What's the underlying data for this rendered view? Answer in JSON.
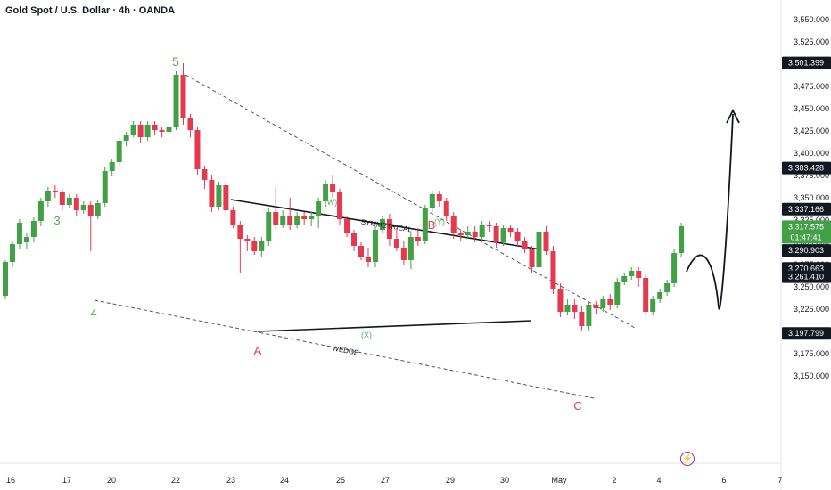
{
  "header": {
    "title": "Gold Spot / U.S. Dollar · 4h · OANDA"
  },
  "colors": {
    "up": "#43a047",
    "down": "#e53950",
    "wave_green": "#4caf50",
    "wave_red": "#e53950",
    "tag_dark": "#131722",
    "tag_green": "#43a047"
  },
  "icons": {
    "flash": "lightning-icon"
  },
  "chart_data": {
    "type": "candlestick",
    "symbol": "Gold Spot / U.S. Dollar",
    "interval": "4h",
    "source": "OANDA",
    "x_ticks": [
      "16",
      "17",
      "20",
      "22",
      "23",
      "24",
      "25",
      "27",
      "29",
      "30",
      "May",
      "2",
      "4",
      "6",
      "7"
    ],
    "y_ticks": [
      "3,550.000",
      "3,525.000",
      "3,500.000",
      "3,475.000",
      "3,450.000",
      "3,425.000",
      "3,400.000",
      "3,375.000",
      "3,350.000",
      "3,325.000",
      "3,300.000",
      "3,275.000",
      "3,250.000",
      "3,225.000",
      "3,200.000",
      "3,175.000",
      "3,150.000"
    ],
    "ylim": [
      3140,
      3560
    ],
    "price_tags": [
      {
        "label": "3,501.399",
        "value": 3501.4,
        "style": "dark"
      },
      {
        "label": "3,383.428",
        "value": 3383.4,
        "style": "dark"
      },
      {
        "label": "3,337.166",
        "value": 3337.2,
        "style": "dark"
      },
      {
        "label": "3,317.575",
        "sub": "01:47:41",
        "value": 3317.6,
        "style": "green"
      },
      {
        "label": "3,290.903",
        "value": 3290.9,
        "style": "dark"
      },
      {
        "label": "3,270.663",
        "value": 3270.7,
        "style": "dark"
      },
      {
        "label": "3,261.410",
        "value": 3261.4,
        "style": "dark"
      },
      {
        "label": "3,197.799",
        "value": 3197.8,
        "style": "dark"
      }
    ],
    "candles": [
      [
        3240,
        3278,
        3236,
        3280
      ],
      [
        3278,
        3298,
        3272,
        3302
      ],
      [
        3298,
        3322,
        3292,
        3326
      ],
      [
        3300,
        3306,
        3292,
        3310
      ],
      [
        3306,
        3324,
        3300,
        3328
      ],
      [
        3324,
        3346,
        3318,
        3350
      ],
      [
        3346,
        3358,
        3340,
        3362
      ],
      [
        3358,
        3356,
        3350,
        3364
      ],
      [
        3356,
        3342,
        3336,
        3360
      ],
      [
        3342,
        3350,
        3338,
        3354
      ],
      [
        3350,
        3336,
        3330,
        3354
      ],
      [
        3336,
        3342,
        3332,
        3346
      ],
      [
        3342,
        3330,
        3290,
        3346
      ],
      [
        3330,
        3344,
        3326,
        3348
      ],
      [
        3344,
        3380,
        3340,
        3384
      ],
      [
        3380,
        3390,
        3374,
        3394
      ],
      [
        3390,
        3414,
        3384,
        3418
      ],
      [
        3414,
        3420,
        3408,
        3424
      ],
      [
        3420,
        3432,
        3418,
        3436
      ],
      [
        3432,
        3418,
        3412,
        3436
      ],
      [
        3418,
        3432,
        3414,
        3436
      ],
      [
        3432,
        3426,
        3420,
        3436
      ],
      [
        3426,
        3424,
        3418,
        3430
      ],
      [
        3424,
        3430,
        3418,
        3434
      ],
      [
        3430,
        3488,
        3426,
        3492
      ],
      [
        3488,
        3440,
        3432,
        3501
      ],
      [
        3440,
        3426,
        3418,
        3444
      ],
      [
        3426,
        3382,
        3376,
        3430
      ],
      [
        3382,
        3370,
        3360,
        3386
      ],
      [
        3370,
        3340,
        3334,
        3376
      ],
      [
        3340,
        3364,
        3336,
        3368
      ],
      [
        3364,
        3336,
        3330,
        3370
      ],
      [
        3336,
        3320,
        3316,
        3340
      ],
      [
        3320,
        3304,
        3266,
        3324
      ],
      [
        3304,
        3302,
        3290,
        3308
      ],
      [
        3302,
        3290,
        3286,
        3306
      ],
      [
        3290,
        3302,
        3284,
        3306
      ],
      [
        3302,
        3334,
        3296,
        3338
      ],
      [
        3334,
        3320,
        3314,
        3362
      ],
      [
        3320,
        3330,
        3316,
        3336
      ],
      [
        3330,
        3320,
        3314,
        3350
      ],
      [
        3320,
        3330,
        3316,
        3334
      ],
      [
        3330,
        3326,
        3320,
        3334
      ],
      [
        3326,
        3330,
        3318,
        3334
      ],
      [
        3330,
        3346,
        3316,
        3350
      ],
      [
        3346,
        3366,
        3340,
        3370
      ],
      [
        3366,
        3356,
        3350,
        3376
      ],
      [
        3356,
        3326,
        3320,
        3360
      ],
      [
        3326,
        3310,
        3306,
        3330
      ],
      [
        3310,
        3296,
        3290,
        3314
      ],
      [
        3296,
        3284,
        3280,
        3300
      ],
      [
        3284,
        3278,
        3272,
        3294
      ],
      [
        3278,
        3314,
        3272,
        3318
      ],
      [
        3314,
        3326,
        3310,
        3330
      ],
      [
        3326,
        3304,
        3296,
        3332
      ],
      [
        3304,
        3294,
        3290,
        3316
      ],
      [
        3294,
        3280,
        3274,
        3302
      ],
      [
        3280,
        3306,
        3270,
        3310
      ],
      [
        3306,
        3302,
        3296,
        3316
      ],
      [
        3302,
        3338,
        3298,
        3342
      ],
      [
        3338,
        3354,
        3334,
        3358
      ],
      [
        3354,
        3346,
        3340,
        3358
      ],
      [
        3346,
        3330,
        3324,
        3350
      ],
      [
        3330,
        3310,
        3304,
        3334
      ],
      [
        3310,
        3308,
        3302,
        3314
      ],
      [
        3308,
        3312,
        3304,
        3318
      ],
      [
        3312,
        3306,
        3300,
        3318
      ],
      [
        3306,
        3320,
        3302,
        3324
      ],
      [
        3320,
        3318,
        3312,
        3324
      ],
      [
        3318,
        3300,
        3294,
        3322
      ],
      [
        3300,
        3316,
        3296,
        3320
      ],
      [
        3316,
        3312,
        3306,
        3320
      ],
      [
        3312,
        3302,
        3296,
        3316
      ],
      [
        3302,
        3292,
        3288,
        3306
      ],
      [
        3292,
        3272,
        3266,
        3296
      ],
      [
        3272,
        3312,
        3268,
        3316
      ],
      [
        3312,
        3290,
        3286,
        3318
      ],
      [
        3290,
        3248,
        3242,
        3296
      ],
      [
        3248,
        3222,
        3216,
        3254
      ],
      [
        3222,
        3230,
        3218,
        3236
      ],
      [
        3230,
        3222,
        3214,
        3236
      ],
      [
        3222,
        3206,
        3200,
        3228
      ],
      [
        3206,
        3230,
        3200,
        3234
      ],
      [
        3230,
        3226,
        3220,
        3234
      ],
      [
        3226,
        3236,
        3222,
        3240
      ],
      [
        3236,
        3230,
        3224,
        3242
      ],
      [
        3230,
        3256,
        3226,
        3260
      ],
      [
        3256,
        3262,
        3252,
        3266
      ],
      [
        3262,
        3268,
        3258,
        3272
      ],
      [
        3268,
        3260,
        3250,
        3272
      ],
      [
        3260,
        3222,
        3218,
        3264
      ],
      [
        3222,
        3236,
        3218,
        3240
      ],
      [
        3236,
        3244,
        3232,
        3248
      ],
      [
        3244,
        3254,
        3240,
        3258
      ],
      [
        3254,
        3288,
        3250,
        3292
      ],
      [
        3288,
        3318,
        3284,
        3322
      ]
    ],
    "wave_labels": [
      {
        "text": "5",
        "color": "green"
      },
      {
        "text": "3",
        "color": "green"
      },
      {
        "text": "4",
        "color": "green"
      },
      {
        "text": "(W)",
        "color": "green"
      },
      {
        "text": "(X)",
        "color": "green"
      },
      {
        "text": "(Y)",
        "color": "green"
      },
      {
        "text": "A",
        "color": "red"
      },
      {
        "text": "B",
        "color": "red"
      },
      {
        "text": "C",
        "color": "red"
      }
    ],
    "pattern_labels": [
      "SYMMETRICAL",
      "WEDGE"
    ]
  }
}
